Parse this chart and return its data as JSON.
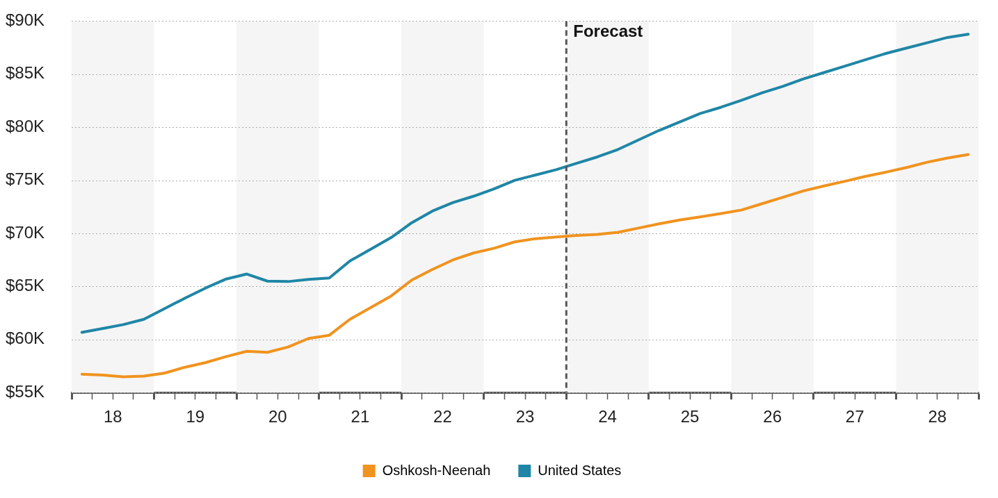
{
  "chart_data": {
    "type": "line",
    "x": [
      18.125,
      18.375,
      18.625,
      18.875,
      19.125,
      19.375,
      19.625,
      19.875,
      20.125,
      20.375,
      20.625,
      20.875,
      21.125,
      21.375,
      21.625,
      21.875,
      22.125,
      22.375,
      22.625,
      22.875,
      23.125,
      23.375,
      23.625,
      23.875,
      24.125,
      24.375,
      24.625,
      24.875,
      25.125,
      25.375,
      25.625,
      25.875,
      26.125,
      26.375,
      26.625,
      26.875,
      27.125,
      27.375,
      27.625,
      27.875,
      28.125,
      28.375,
      28.625,
      28.875
    ],
    "series": [
      {
        "name": "Oshkosh-Neenah",
        "color": "#f0931f",
        "values": [
          56730,
          56650,
          56490,
          56550,
          56830,
          57390,
          57830,
          58390,
          58890,
          58790,
          59290,
          60100,
          60400,
          61900,
          63000,
          64100,
          65600,
          66600,
          67500,
          68150,
          68600,
          69200,
          69500,
          69650,
          69800,
          69900,
          70100,
          70500,
          70900,
          71260,
          71560,
          71860,
          72200,
          72800,
          73400,
          74000,
          74470,
          74900,
          75370,
          75770,
          76200,
          76700,
          77100,
          77430
        ]
      },
      {
        "name": "United States",
        "color": "#1f86a6",
        "values": [
          60670,
          61030,
          61400,
          61900,
          62900,
          63900,
          64850,
          65700,
          66170,
          65500,
          65460,
          65660,
          65800,
          67400,
          68500,
          69600,
          71000,
          72100,
          72900,
          73500,
          74200,
          75000,
          75500,
          76000,
          76600,
          77200,
          77900,
          78800,
          79700,
          80500,
          81300,
          81880,
          82540,
          83250,
          83850,
          84550,
          85150,
          85750,
          86350,
          86950,
          87460,
          87960,
          88460,
          88760
        ]
      }
    ],
    "xlim": [
      18,
      29
    ],
    "xticks": [
      {
        "value": 18,
        "label": null
      },
      {
        "value": 18.25,
        "label": null
      },
      {
        "value": 18.5,
        "label": "18"
      },
      {
        "value": 18.75,
        "label": null
      },
      {
        "value": 19,
        "label": null
      },
      {
        "value": 19.25,
        "label": null
      },
      {
        "value": 19.5,
        "label": "19"
      },
      {
        "value": 19.75,
        "label": null
      },
      {
        "value": 20,
        "label": null
      },
      {
        "value": 20.25,
        "label": null
      },
      {
        "value": 20.5,
        "label": "20"
      },
      {
        "value": 20.75,
        "label": null
      },
      {
        "value": 21,
        "label": null
      },
      {
        "value": 21.25,
        "label": null
      },
      {
        "value": 21.5,
        "label": "21"
      },
      {
        "value": 21.75,
        "label": null
      },
      {
        "value": 22,
        "label": null
      },
      {
        "value": 22.25,
        "label": null
      },
      {
        "value": 22.5,
        "label": "22"
      },
      {
        "value": 22.75,
        "label": null
      },
      {
        "value": 23,
        "label": null
      },
      {
        "value": 23.25,
        "label": null
      },
      {
        "value": 23.5,
        "label": "23"
      },
      {
        "value": 23.75,
        "label": null
      },
      {
        "value": 24,
        "label": null
      },
      {
        "value": 24.25,
        "label": null
      },
      {
        "value": 24.5,
        "label": "24"
      },
      {
        "value": 24.75,
        "label": null
      },
      {
        "value": 25,
        "label": null
      },
      {
        "value": 25.25,
        "label": null
      },
      {
        "value": 25.5,
        "label": "25"
      },
      {
        "value": 25.75,
        "label": null
      },
      {
        "value": 26,
        "label": null
      },
      {
        "value": 26.25,
        "label": null
      },
      {
        "value": 26.5,
        "label": "26"
      },
      {
        "value": 26.75,
        "label": null
      },
      {
        "value": 27,
        "label": null
      },
      {
        "value": 27.25,
        "label": null
      },
      {
        "value": 27.5,
        "label": "27"
      },
      {
        "value": 27.75,
        "label": null
      },
      {
        "value": 28,
        "label": null
      },
      {
        "value": 28.25,
        "label": null
      },
      {
        "value": 28.5,
        "label": "28"
      },
      {
        "value": 28.75,
        "label": null
      },
      {
        "value": 29,
        "label": null
      }
    ],
    "ylim": [
      55000,
      90000
    ],
    "yticks": [
      {
        "value": 55000,
        "label": "$55K"
      },
      {
        "value": 60000,
        "label": "$60K"
      },
      {
        "value": 65000,
        "label": "$65K"
      },
      {
        "value": 70000,
        "label": "$70K"
      },
      {
        "value": 75000,
        "label": "$75K"
      },
      {
        "value": 80000,
        "label": "$80K"
      },
      {
        "value": 85000,
        "label": "$85K"
      },
      {
        "value": 90000,
        "label": "$90K"
      }
    ],
    "grid": "y",
    "legend": "bottom",
    "marker": "none",
    "line_style": "solid",
    "ref_lines": [
      {
        "axis": "x",
        "value": 24,
        "label": "Forecast",
        "color": "#555555",
        "line_style": "dashed"
      }
    ],
    "bands": [
      {
        "axis": "x",
        "from": 18,
        "to": 19,
        "color": "#f5f5f5"
      },
      {
        "axis": "x",
        "from": 20,
        "to": 21,
        "color": "#f5f5f5"
      },
      {
        "axis": "x",
        "from": 22,
        "to": 23,
        "color": "#f5f5f5"
      },
      {
        "axis": "x",
        "from": 24,
        "to": 25,
        "color": "#f5f5f5"
      },
      {
        "axis": "x",
        "from": 26,
        "to": 27,
        "color": "#f5f5f5"
      },
      {
        "axis": "x",
        "from": 28,
        "to": 29,
        "color": "#f5f5f5"
      }
    ]
  }
}
